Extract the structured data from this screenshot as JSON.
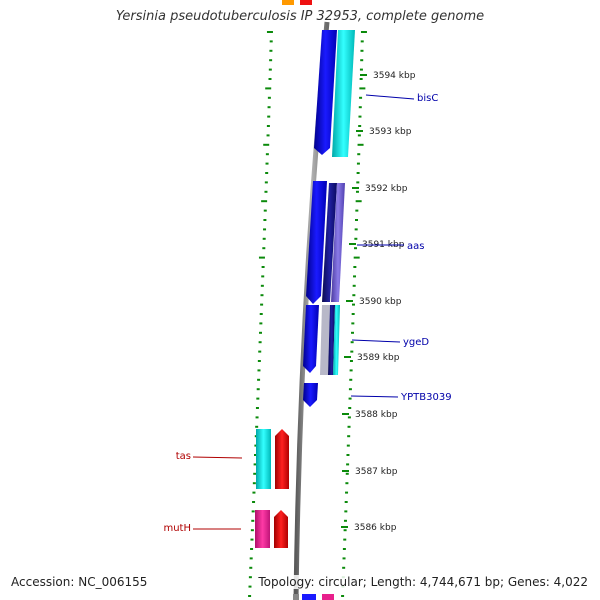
{
  "title": "Yersinia pseudotuberculosis IP 32953, complete genome",
  "accession_label": "Accession: NC_006155",
  "summary": "Topology: circular; Length: 4,744,671 bp; Genes: 4,022",
  "colors": {
    "backbone": "#8c8c8c",
    "cds_forward": "#0000e6",
    "cds_reverse_cyan": "#00e6e6",
    "cds_red": "#ee1111",
    "cds_magenta": "#e8208c",
    "cds_navy": "#14147a",
    "cds_slate": "#6a5acd",
    "tick_green": "#0b8a0b",
    "label_blue": "#0000aa",
    "label_red": "#b00000"
  },
  "ticks": [
    "3594 kbp",
    "3593 kbp",
    "3592 kbp",
    "3591 kbp",
    "3590 kbp",
    "3589 kbp",
    "3588 kbp",
    "3587 kbp",
    "3586 kbp"
  ],
  "genes": [
    {
      "name": "bisC",
      "strand": "forward",
      "color": "label_blue"
    },
    {
      "name": "aas",
      "strand": "forward",
      "color": "label_blue"
    },
    {
      "name": "ygeD",
      "strand": "forward",
      "color": "label_blue"
    },
    {
      "name": "YPTB3039",
      "strand": "forward",
      "color": "label_blue"
    },
    {
      "name": "tas",
      "strand": "reverse",
      "color": "label_red"
    },
    {
      "name": "mutH",
      "strand": "reverse",
      "color": "label_red"
    }
  ]
}
